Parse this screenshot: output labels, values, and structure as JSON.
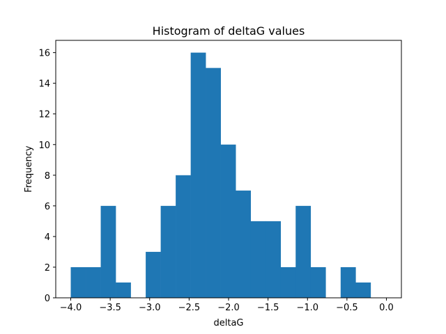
{
  "chart_data": {
    "type": "bar",
    "title": "Histogram of deltaG values",
    "xlabel": "deltaG",
    "ylabel": "Frequency",
    "bar_color": "#1f77b4",
    "bin_start": -4.0,
    "bin_width": 0.19,
    "values": [
      2,
      2,
      6,
      1,
      0,
      3,
      6,
      8,
      16,
      15,
      10,
      7,
      5,
      5,
      2,
      6,
      2,
      0,
      2,
      1
    ],
    "xlim": [
      -4.19,
      0.19
    ],
    "ylim": [
      0,
      16.8
    ],
    "xticks": [
      -4.0,
      -3.5,
      -3.0,
      -2.5,
      -2.0,
      -1.5,
      -1.0,
      -0.5,
      0.0
    ],
    "xtick_labels": [
      "−4.0",
      "−3.5",
      "−3.0",
      "−2.5",
      "−2.0",
      "−1.5",
      "−1.0",
      "−0.5",
      "0.0"
    ],
    "yticks": [
      0,
      2,
      4,
      6,
      8,
      10,
      12,
      14,
      16
    ],
    "ytick_labels": [
      "0",
      "2",
      "4",
      "6",
      "8",
      "10",
      "12",
      "14",
      "16"
    ],
    "grid": false,
    "legend": "none"
  }
}
